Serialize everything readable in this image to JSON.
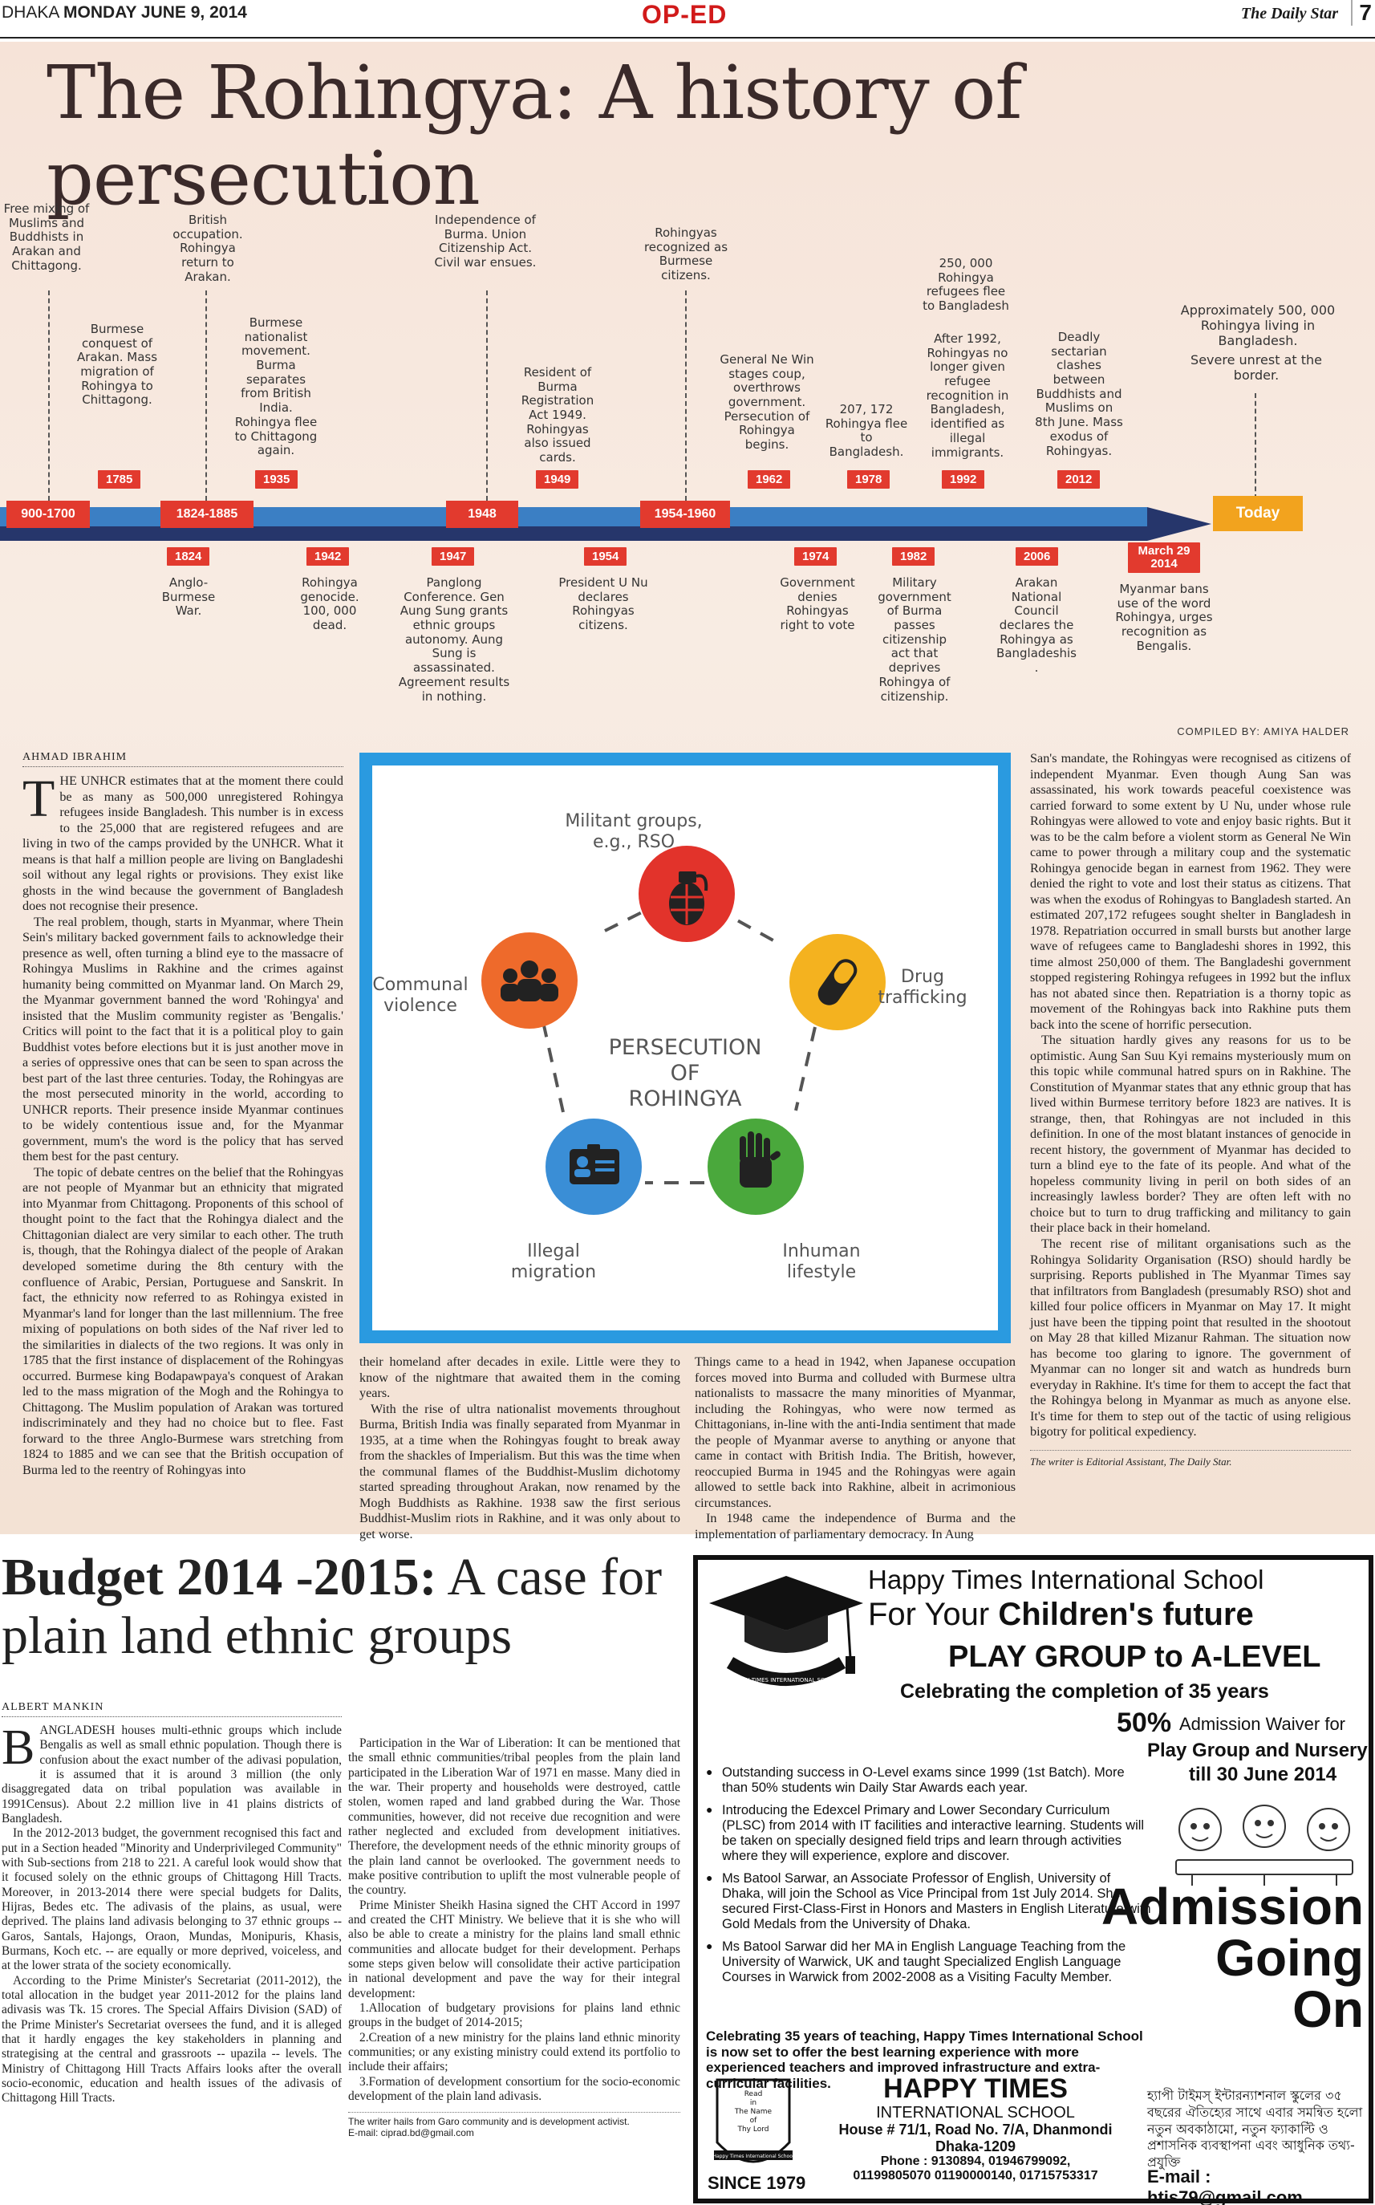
{
  "header": {
    "dateline_city": "DHAKA",
    "dateline_date": "MONDAY JUNE 9, 2014",
    "section": "OP-ED",
    "masthead": "The Daily Star",
    "page": "7"
  },
  "feature": {
    "title": "The Rohingya: A history of persecution",
    "compiled_by": "COMPILED BY: AMIYA HALDER",
    "timeline": {
      "segments": [
        "900-1700",
        "1824-1885",
        "1948",
        "1954-1960"
      ],
      "today": "Today",
      "above": [
        {
          "year": "1785",
          "text": "Burmese conquest of Arakan. Mass migration of Rohingya to Chittagong."
        },
        {
          "year": "1935",
          "text": "Burmese nationalist movement. Burma separates from British India. Rohingya flee to Chittagong again."
        },
        {
          "year": "1949",
          "text": "Resident of Burma Registration Act 1949. Rohingyas also issued cards."
        },
        {
          "year": "1962",
          "text": "General Ne Win stages coup, overthrows government. Persecution of Rohingya begins."
        },
        {
          "year": "1978",
          "text": "207, 172 Rohingya flee to Bangladesh."
        },
        {
          "year": "1992",
          "text": "After 1992, Rohingyas no longer given refugee recognition in Bangladesh, identified as illegal immigrants."
        },
        {
          "year": "2012",
          "text": "Deadly sectarian clashes between Buddhists and Muslims on 8th June. Mass exodus of Rohingyas."
        }
      ],
      "top": [
        {
          "text": "Free mixing of Muslims and Buddhists in Arakan and Chittagong."
        },
        {
          "text": "British occupation. Rohingya return to Arakan."
        },
        {
          "text": "Independence of Burma. Union Citizenship Act. Civil war ensues."
        },
        {
          "text": "Rohingyas recognized as Burmese citizens."
        },
        {
          "text": "250, 000 Rohingya refugees flee to Bangladesh"
        },
        {
          "text": "Approximately 500, 000 Rohingya living in Bangladesh."
        },
        {
          "text": "Severe unrest at the border."
        }
      ],
      "below": [
        {
          "year": "1824",
          "text": "Anglo-Burmese War."
        },
        {
          "year": "1942",
          "text": "Rohingya genocide. 100, 000 dead."
        },
        {
          "year": "1947",
          "text": "Panglong Conference. Gen Aung Sung grants ethnic groups autonomy. Aung Sung is assassinated. Agreement results in nothing."
        },
        {
          "year": "1954",
          "text": "President U Nu declares Rohingyas citizens."
        },
        {
          "year": "1974",
          "text": "Government denies Rohingyas right to vote"
        },
        {
          "year": "1982",
          "text": "Military government of Burma passes citizenship act that deprives Rohingya of citizenship."
        },
        {
          "year": "2006",
          "text": "Arakan National Council declares the Rohingya as Bangladeshis ."
        },
        {
          "year": "March 29 2014",
          "text": "Myanmar bans use of the word Rohingya, urges recognition as Bengalis."
        }
      ]
    },
    "infographic": {
      "center": [
        "PERSECUTION",
        "OF",
        "ROHINGYA"
      ],
      "nodes": [
        {
          "label": "Militant groups, e.g., RSO",
          "icon": "grenade-icon",
          "color": "#e2332b"
        },
        {
          "label": "Drug trafficking",
          "icon": "pill-icon",
          "color": "#f4b21f"
        },
        {
          "label": "Inhuman lifestyle",
          "icon": "hand-icon",
          "color": "#4aa83c"
        },
        {
          "label": "Illegal migration",
          "icon": "id-card-icon",
          "color": "#3a8ed6"
        },
        {
          "label": "Communal violence",
          "icon": "crowd-icon",
          "color": "#ee6a2b"
        }
      ]
    },
    "article": {
      "byline": "Ahmad Ibrahim",
      "dropcap": "T",
      "col1": [
        "HE UNHCR estimates that at the moment there could be as many as 500,000 unregistered Rohingya refugees inside Bangladesh. This number is in excess to the 25,000 that are registered refugees and are living in two of the camps provided by the UNHCR. What it means is that half a million people are living on Bangladeshi soil without any legal rights or provisions. They exist like ghosts in the wind because the government of Bangladesh does not recognise their presence.",
        "The real problem, though, starts in Myanmar, where Thein Sein's military backed government fails to acknowledge their presence as well, often turning a blind eye to the massacre of Rohingya Muslims in Rakhine and the crimes against humanity being committed on Myanmar land. On March 29, the Myanmar government banned the word 'Rohingya' and insisted that the Muslim community register as 'Bengalis.' Critics will point to the fact that it is a political ploy to gain Buddhist votes before elections but it is just another move in a series of oppressive ones that can be seen to span across the best part of the last three centuries. Today, the Rohingyas are the most persecuted minority in the world, according to UNHCR reports. Their presence inside Myanmar continues to be widely contentious issue and, for the Myanmar government, mum's the word is the policy that has served them best for the past century.",
        "The topic of debate centres on the belief that the Rohingyas are not people of Myanmar but an ethnicity that migrated into Myanmar from Chittagong. Proponents of this school of thought point to the fact that the Rohingya dialect and the Chittagonian dialect are very similar to each other. The truth is, though, that the Rohingya dialect of the people of Arakan developed sometime during the 8th century with the confluence of Arabic, Persian, Portuguese and Sanskrit. In fact, the ethnicity now referred to as Rohingya existed in Myanmar's land for longer than the last millennium. The free mixing of populations on both sides of the Naf river led to the similarities in dialects of the two regions. It was only in 1785 that the first instance of displacement of the Rohingyas occurred. Burmese king Bodapawpaya's conquest of Arakan led to the mass migration of the Mogh and the Rohingya to Chittagong. The Muslim population of Arakan was tortured indiscriminately and they had no choice but to flee. Fast forward to the three Anglo-Burmese wars stretching from 1824 to 1885 and we can see that the British occupation of Burma led to the reentry of Rohingyas into"
      ],
      "col2": [
        "their homeland after decades in exile. Little were they to know of the nightmare that awaited them in the coming years.",
        "With the rise of ultra nationalist movements throughout Burma, British India was finally separated from Myanmar in 1935, at a time when the Rohingyas fought to break away from the shackles of Imperialism. But this was the time when the communal flames of the Buddhist-Muslim dichotomy started spreading throughout Arakan, now renamed by the Mogh Buddhists as Rakhine. 1938 saw the first serious Buddhist-Muslim riots in Rakhine, and it was only about to get worse."
      ],
      "col3": [
        "Things came to a head in 1942, when Japanese occupation forces moved into Burma and colluded with Burmese ultra nationalists to massacre the many minorities of Myanmar, including the Rohingyas, who were now termed as Chittagonians, in-line with the anti-India sentiment that made the people of Myanmar averse to anything or anyone that came in contact with British India. The British, however, reoccupied Burma in 1945 and the Rohingyas were again allowed to settle back into Rakhine, albeit in acrimonious circumstances.",
        "In 1948 came the independence of Burma and the implementation of parliamentary democracy. In Aung"
      ],
      "col4": [
        "San's mandate, the Rohingyas were recognised as citizens of independent Myanmar. Even though Aung San was assassinated, his work towards peaceful coexistence was carried forward to some extent by U Nu, under whose rule Rohingyas were allowed to vote and enjoy basic rights. But it was to be the calm before a violent storm as General Ne Win came to power through a military coup and the systematic Rohingya genocide began in earnest from 1962. They were denied the right to vote and lost their status as citizens. That was when the exodus of Rohingyas to Bangladesh started. An estimated 207,172 refugees sought shelter in Bangladesh in 1978. Repatriation occurred in small bursts but another large wave of refugees came to Bangladeshi shores in 1992, this time almost 250,000 of them. The Bangladeshi government stopped registering Rohingya refugees in 1992 but the influx has not abated since then. Repatriation is a thorny topic as movement of the Rohingyas back into Rakhine puts them back into the scene of horrific persecution.",
        "The situation hardly gives any reasons for us to be optimistic. Aung San Suu Kyi remains mysteriously mum on this topic while communal hatred spurs on in Rakhine. The Constitution of Myanmar states that any ethnic group that has lived within Burmese territory before 1823 are natives. It is strange, then, that Rohingyas are not included in this definition. In one of the most blatant instances of genocide in recent history, the government of Myanmar has decided to turn a blind eye to the fate of its people. And what of the hopeless community living in peril on both sides of an increasingly lawless border? They are often left with no choice but to turn to drug trafficking and militancy to gain their place back in their homeland.",
        "The recent rise of militant organisations such as the Rohingya Solidarity Organisation (RSO) should hardly be surprising. Reports published in The Myanmar Times say that infiltrators from Bangladesh (presumably RSO) shot and killed four police officers in Myanmar on May 17. It might just have been the tipping point that resulted in the shootout on May 28 that killed Mizanur Rahman. The situation now has become too glaring to ignore. The government of Myanmar can no longer sit and watch as hundreds burn everyday in Rakhine. It's time for them to accept the fact that the Rohingya belong in Myanmar as much as anyone else. It's time for them to step out of the tactic of using religious bigotry for political expediency."
      ],
      "footnote": "The writer is Editorial Assistant, The Daily Star."
    }
  },
  "budget": {
    "title_bold": "Budget 2014 -2015:",
    "title_rest": "A case for plain land ethnic groups",
    "byline": "Albert Mankin",
    "dropcap": "B",
    "col1": [
      "ANGLADESH houses multi-ethnic groups which include Bengalis as well as small ethnic population. Though there is confusion about the exact number of the adivasi population, it is assumed that it is around 3 million (the only disaggregated data on tribal population was available in 1991Census). About 2.2 million live in 41 plains districts of Bangladesh.",
      "In the 2012-2013 budget, the government recognised this fact and put in a Section headed \"Minority and Underprivileged Community\" with Sub-sections from 218 to 221. A careful look would show that it focused solely on the ethnic groups of Chittagong Hill Tracts. Moreover, in 2013-2014 there were special budgets for Dalits, Hijras, Bedes etc. The adivasis of the plains, as usual, were deprived. The plains land adivasis belonging to 37 ethnic groups -- Garos, Santals, Hajongs, Oraon, Mundas, Monipuris, Khasis, Burmans, Koch etc. -- are equally or more deprived, voiceless, and at the lower strata of the society economically.",
      "According to the Prime Minister's Secretariat (2011-2012), the total allocation in the budget year 2011-2012 for the plains land adivasis was Tk. 15 crores. The Special Affairs Division (SAD) of the Prime Minister's Secretariat oversees the fund, and it is alleged that it hardly engages the key stakeholders in planning and strategising at the central and grassroots -- upazila -- levels. The Ministry of Chittagong Hill Tracts Affairs looks after the overall socio-economic, education and health issues of the adivasis of Chittagong Hill Tracts."
    ],
    "col2": [
      "Participation in the War of Liberation: It can be mentioned that the small ethnic communities/tribal peoples from the plain land participated in the Liberation War of 1971 en masse. Many died in the war. Their property and households were destroyed, cattle stolen, women raped and land grabbed during the War. Those communities, however, did not receive due recognition and were rather neglected and excluded from development initiatives. Therefore, the development needs of the ethnic minority groups of the plain land cannot be overlooked. The government needs to make positive contribution to uplift the most vulnerable people of the country.",
      "Prime Minister Sheikh Hasina signed the CHT Accord in 1997 and created the CHT Ministry. We believe that it is she who will also be able to create a ministry for the plains land small ethnic communities and allocate budget for their development. Perhaps some steps given below will consolidate their active participation in national development and pave the way for their integral development:",
      "1.Allocation of budgetary provisions for plains land ethnic groups in the budget of 2014-2015;",
      "2.Creation of a new ministry for the plains land ethnic minority communities; or any existing ministry could extend its portfolio to include their affairs;",
      "3.Formation of development consortium for the socio-economic development of the plain land adivasis."
    ],
    "footnote": "The writer hails from Garo community and is development activist.",
    "email": "E-mail: ciprad.bd@gmail.com"
  },
  "ad": {
    "school": "Happy Times International School",
    "line1_pre": "For Your",
    "line1_bold": "Children's future",
    "line2": "PLAY GROUP to A-LEVEL",
    "line3": "Celebrating the completion of 35 years",
    "waiver_pct": "50%",
    "waiver_text": "Admission Waiver for",
    "waiver_line2": "Play Group and Nursery",
    "waiver_line3": "till 30 June 2014",
    "seal_text": "HAPPY TIMES INTERNATIONAL SCHOOL",
    "bullets": [
      "Outstanding success in O-Level exams since 1999 (1st Batch). More than 50% students win Daily Star Awards each year.",
      "Introducing the Edexcel Primary and Lower Secondary Curriculum (PLSC) from 2014 with IT facilities and interactive learning. Students will be taken on specially designed field trips and learn through activities where they will experience, explore and discover.",
      "Ms Batool Sarwar, an Associate Professor of English, University of Dhaka, will join the School as Vice Principal from 1st July 2014. She secured First-Class-First in Honors and Masters in English Literature with Gold Medals from the University of Dhaka.",
      "Ms Batool Sarwar did her MA in English Language Teaching from the University of Warwick, UK and taught Specialized English Language Courses in Warwick from 2002-2008 as a Visiting Faculty Member."
    ],
    "admission": [
      "Admission",
      "Going",
      "On"
    ],
    "celebrating": "Celebrating 35 years of teaching, Happy Times International School is now set to offer the best learning experience with more experienced teachers and improved infrastructure and extra-curricular facilities.",
    "crest_text": [
      "Read",
      "in",
      "The Name",
      "of",
      "Thy Lord"
    ],
    "crest_band": "Happy Times International School",
    "since": "SINCE 1979",
    "name1": "HAPPY TIMES",
    "name2": "INTERNATIONAL SCHOOL",
    "address": "House # 71/1, Road No. 7/A, Dhanmondi",
    "city": "Dhaka-1209",
    "phone": "Phone : 9130894, 01946799092,",
    "phone2": "01199805070 01190000140, 01715753317",
    "bangla": "হ্যাপী টাইমস্ ইন্টারন্যাশনাল স্কুলের ৩৫ বছরের ঐতিহ্যের সাথে এবার সমন্বিত হলো নতুন অবকাঠামো, নতুন ফ্যাকাল্টি ও প্রশাসনিক ব্যবস্থাপনা এবং আধুনিক তথ্য-প্রযুক্তি",
    "email": "E-mail : htis79@gmail.com"
  }
}
